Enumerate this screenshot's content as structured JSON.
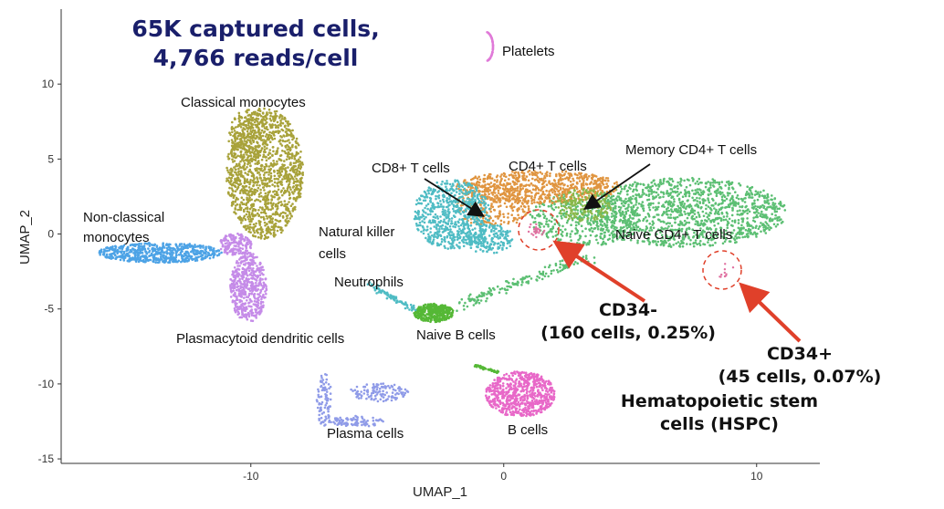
{
  "headline": {
    "line1": "65K captured cells,",
    "line2": "4,766 reads/cell"
  },
  "chart_data": {
    "type": "scatter",
    "xlabel": "UMAP_1",
    "ylabel": "UMAP_2",
    "xlim": [
      -17.5,
      12.5
    ],
    "ylim": [
      -15.3,
      15
    ],
    "xticks": [
      -10,
      0,
      10
    ],
    "yticks": [
      10,
      5,
      0,
      -5,
      -10,
      -15
    ],
    "grid": false,
    "clusters": [
      {
        "name": "Classical monocytes",
        "color": "#a8a23a",
        "center": [
          -9.9,
          3.2
        ]
      },
      {
        "name": "Non-classical monocytes",
        "color": "#4da3e6",
        "center": [
          -13.5,
          -1.2
        ]
      },
      {
        "name": "Plasmacytoid dendritic cells",
        "color": "#c58be8",
        "center": [
          -10.3,
          -3.8
        ]
      },
      {
        "name": "Platelets",
        "color": "#e07ad8",
        "center": [
          -0.7,
          12.4
        ]
      },
      {
        "name": "CD8+ T cells",
        "color": "#4fbcc4",
        "center": [
          -1.8,
          1.2
        ]
      },
      {
        "name": "CD4+ T cells",
        "color": "#e09540",
        "center": [
          2.2,
          2.3
        ]
      },
      {
        "name": "Memory CD4+ T cells",
        "color": "#8ab84a",
        "center": [
          3.5,
          0.9
        ]
      },
      {
        "name": "Naive CD4+ T cells",
        "color": "#5cbf73",
        "center": [
          7.6,
          0.0
        ]
      },
      {
        "name": "Natural killer cells",
        "color": "#4fbcc4",
        "center": [
          -0.8,
          -0.8
        ]
      },
      {
        "name": "Neutrophils",
        "color": "#4fbcc4",
        "center": [
          -4.8,
          -4.2
        ]
      },
      {
        "name": "Naive B cells",
        "color": "#55b836",
        "center": [
          -3.0,
          -5.4
        ]
      },
      {
        "name": "Plasma cells",
        "color": "#8f9be8",
        "center": [
          -6.0,
          -10.5
        ]
      },
      {
        "name": "B cells",
        "color": "#e868c8",
        "center": [
          0.6,
          -10.8
        ]
      }
    ],
    "highlights": [
      {
        "name": "CD34-",
        "center": [
          1.3,
          0.2
        ],
        "cells": 160,
        "percent": 0.25
      },
      {
        "name": "CD34+",
        "center": [
          8.8,
          -2.6
        ],
        "cells": 45,
        "percent": 0.07
      }
    ]
  },
  "labels": {
    "platelets": "Platelets",
    "classical_monocytes": "Classical monocytes",
    "cd8": "CD8+ T cells",
    "cd4": "CD4+ T cells",
    "memory_cd4": "Memory CD4+ T cells",
    "naive_cd4": "Naive CD4+ T cells",
    "non_classical_1": "Non-classical",
    "non_classical_2": "monocytes",
    "nk_1": "Natural killer",
    "nk_2": "cells",
    "neutrophils": "Neutrophils",
    "naive_b": "Naive B cells",
    "pdc": "Plasmacytoid dendritic cells",
    "plasma": "Plasma  cells",
    "b_cells": "B cells"
  },
  "callouts": {
    "cd34_neg_1": "CD34-",
    "cd34_neg_2": "(160 cells, 0.25%)",
    "cd34_pos_1": "CD34+",
    "cd34_pos_2": "(45 cells, 0.07%)",
    "hspc_1": "Hematopoietic stem",
    "hspc_2": "cells (HSPC)"
  },
  "colors": {
    "arrow_red": "#e0402a",
    "headline": "#1a1f6b"
  }
}
